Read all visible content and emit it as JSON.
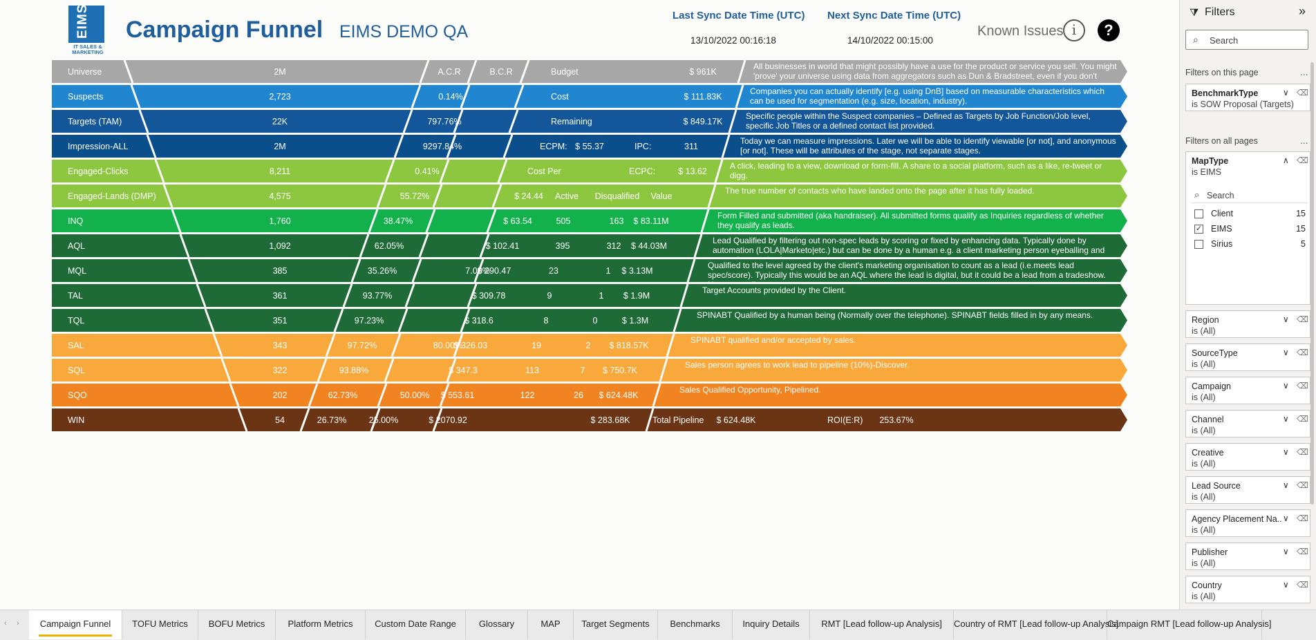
{
  "header": {
    "logo_text": "EIMS",
    "logo_sub": "IT SALES & MARKETING",
    "title": "Campaign Funnel",
    "subtitle": "EIMS DEMO QA",
    "last_sync_label": "Last Sync Date Time (UTC)",
    "last_sync_value": "13/10/2022 00:16:18",
    "next_sync_label": "Next Sync Date Time (UTC)",
    "next_sync_value": "14/10/2022 00:15:00",
    "known_issues": "Known Issues",
    "info_glyph": "i",
    "help_glyph": "?"
  },
  "funnel": {
    "rows": [
      {
        "name": "Universe",
        "color": "#a7a7a7",
        "cells": [
          {
            "c": "count",
            "t": "2M"
          },
          {
            "c": "h1",
            "t": "A.C.R"
          },
          {
            "c": "h2",
            "t": "B.C.R"
          },
          {
            "c": "h3",
            "t": "Budget"
          },
          {
            "c": "h4",
            "t": "$ 961K"
          }
        ],
        "desc": "All businesses in world that might possibly have a use for the product or service you sell. You might 'prove' your universe using data from aggregators such as Dun & Bradstreet, even if you don't"
      },
      {
        "name": "Suspects",
        "color": "#1f86cf",
        "cells": [
          {
            "c": "count",
            "t": "2,723"
          },
          {
            "c": "acr",
            "t": "0.14%"
          },
          {
            "c": "h3",
            "t": "Cost"
          },
          {
            "c": "h4",
            "t": "$ 111.83K"
          }
        ],
        "desc": "Companies you can actually identify [e.g. using DnB] based on measurable characteristics which can be used for segmentation (e.g. size, location, industry)."
      },
      {
        "name": "Targets (TAM)",
        "color": "#13569a",
        "cells": [
          {
            "c": "count",
            "t": "22K"
          },
          {
            "c": "acr",
            "t": "797.76%"
          },
          {
            "c": "h3",
            "t": "Remaining"
          },
          {
            "c": "h4",
            "t": "$ 849.17K"
          }
        ],
        "desc": "Specific people within the Suspect companies – Defined as Targets by Job Function/Job level, specific Job Titles or a defined contact list provided."
      },
      {
        "name": "Impression-ALL",
        "color": "#0a4e8c",
        "cells": [
          {
            "c": "count",
            "t": "2M"
          },
          {
            "c": "acr",
            "t": "9297.84%"
          },
          {
            "c": "ecpm",
            "t": "ECPM:"
          },
          {
            "c": "ecpmv",
            "t": "$ 55.37"
          },
          {
            "c": "ipc",
            "t": "IPC:"
          },
          {
            "c": "ipcv",
            "t": "311"
          }
        ],
        "desc": "Today we can measure impressions. Later we will be able to identify viewable [or not], and anonymous [or not]. These will be attributes of the stage, not separate stages."
      },
      {
        "name": "Engaged-Clicks",
        "color": "#8dc63f",
        "cells": [
          {
            "c": "count",
            "t": "8,211"
          },
          {
            "c": "acr",
            "t": "0.41%"
          },
          {
            "c": "costper",
            "t": "Cost Per"
          },
          {
            "c": "ecpc",
            "t": "ECPC:"
          },
          {
            "c": "ecpcv",
            "t": "$ 13.62"
          }
        ],
        "desc": "A click, leading to a view, download or form-fill. A share to a social platform, such as a like, re-tweet or digg."
      },
      {
        "name": "Engaged-Lands (DMP)",
        "color": "#8dc63f",
        "cells": [
          {
            "c": "count",
            "t": "4,575"
          },
          {
            "c": "acr",
            "t": "55.72%"
          },
          {
            "c": "cost",
            "t": "$ 24.44"
          },
          {
            "c": "active",
            "t": "Active"
          },
          {
            "c": "disq",
            "t": "Disqualified"
          },
          {
            "c": "value",
            "t": "Value"
          }
        ],
        "desc": "The true number of contacts who have landed onto the page after it has fully loaded."
      },
      {
        "name": "INQ",
        "color": "#12b14b",
        "cells": [
          {
            "c": "count",
            "t": "1,760"
          },
          {
            "c": "acr",
            "t": "38.47%"
          },
          {
            "c": "cost",
            "t": "$ 63.54"
          },
          {
            "c": "active",
            "t": "505"
          },
          {
            "c": "disq",
            "t": "163"
          },
          {
            "c": "value",
            "t": "$ 83.11M"
          }
        ],
        "desc": "Form Filled and submitted (aka handraiser). All submitted forms qualify as Inquiries regardless of whether they qualify as leads."
      },
      {
        "name": "AQL",
        "color": "#1e6b37",
        "cells": [
          {
            "c": "count",
            "t": "1,092"
          },
          {
            "c": "acr",
            "t": "62.05%"
          },
          {
            "c": "cost",
            "t": "$ 102.41"
          },
          {
            "c": "active",
            "t": "395"
          },
          {
            "c": "disq",
            "t": "312"
          },
          {
            "c": "value",
            "t": "$ 44.03M"
          }
        ],
        "desc": "Lead Qualified by filtering out non-spec leads by scoring or fixed by enhancing data. Typically done by automation (LOLA|Marketo|etc.) but can be done by a human e.g. a client marketing person eyeballing and accepting or rejecting"
      },
      {
        "name": "MQL",
        "color": "#1e6b37",
        "cells": [
          {
            "c": "count",
            "t": "385"
          },
          {
            "c": "acr",
            "t": "35.26%"
          },
          {
            "c": "bcr",
            "t": "7.00%"
          },
          {
            "c": "cost",
            "t": "$ 290.47"
          },
          {
            "c": "active",
            "t": "23"
          },
          {
            "c": "disq",
            "t": "1"
          },
          {
            "c": "value",
            "t": "$ 3.13M"
          }
        ],
        "desc": "Qualified to the level agreed by the client's marketing organisation to count as a lead (i.e.meets lead spec/score). Typically this would be an AQL where the lead is digital, but it could be a lead from a tradeshow. Note most clients"
      },
      {
        "name": "TAL",
        "color": "#1e6b37",
        "cells": [
          {
            "c": "count",
            "t": "361"
          },
          {
            "c": "acr",
            "t": "93.77%"
          },
          {
            "c": "cost",
            "t": "$ 309.78"
          },
          {
            "c": "active",
            "t": "9"
          },
          {
            "c": "disq",
            "t": "1"
          },
          {
            "c": "value",
            "t": "$ 1.9M"
          }
        ],
        "desc": "Target Accounts provided by the Client."
      },
      {
        "name": "TQL",
        "color": "#1e6b37",
        "cells": [
          {
            "c": "count",
            "t": "351"
          },
          {
            "c": "acr",
            "t": "97.23%"
          },
          {
            "c": "cost",
            "t": "$ 318.6"
          },
          {
            "c": "active",
            "t": "8"
          },
          {
            "c": "disq",
            "t": "0"
          },
          {
            "c": "value",
            "t": "$ 1.3M"
          }
        ],
        "desc": "SPINABT Qualified by a human being (Normally over the telephone). SPINABT fields filled in by any means."
      },
      {
        "name": "SAL",
        "color": "#f9a83b",
        "cells": [
          {
            "c": "count",
            "t": "343"
          },
          {
            "c": "acr",
            "t": "97.72%"
          },
          {
            "c": "bcr",
            "t": "80.00%"
          },
          {
            "c": "cost",
            "t": "$ 326.03"
          },
          {
            "c": "active",
            "t": "19"
          },
          {
            "c": "disq",
            "t": "2"
          },
          {
            "c": "value",
            "t": "$ 818.57K"
          }
        ],
        "desc": "SPINABT qualified and/or accepted by sales."
      },
      {
        "name": "SQL",
        "color": "#f9a83b",
        "cells": [
          {
            "c": "count",
            "t": "322"
          },
          {
            "c": "acr",
            "t": "93.88%"
          },
          {
            "c": "cost",
            "t": "$ 347.3"
          },
          {
            "c": "active",
            "t": "113"
          },
          {
            "c": "disq",
            "t": "7"
          },
          {
            "c": "value",
            "t": "$ 750.7K"
          }
        ],
        "desc": "Sales person agrees to work lead to pipeline (10%)-Discover."
      },
      {
        "name": "SQO",
        "color": "#f28321",
        "cells": [
          {
            "c": "count",
            "t": "202"
          },
          {
            "c": "acr",
            "t": "62.73%"
          },
          {
            "c": "bcr",
            "t": "50.00%"
          },
          {
            "c": "cost",
            "t": "$ 553.61"
          },
          {
            "c": "active",
            "t": "122"
          },
          {
            "c": "disq",
            "t": "26"
          },
          {
            "c": "value",
            "t": "$ 624.48K"
          }
        ],
        "desc": "Sales Qualified Opportunity, Pipelined."
      },
      {
        "name": "WIN",
        "color": "#6b3414",
        "cells": [
          {
            "c": "count",
            "t": "54"
          },
          {
            "c": "acr",
            "t": "26.73%"
          },
          {
            "c": "bcr",
            "t": "25.00%"
          },
          {
            "c": "cost",
            "t": "$ 2070.92"
          },
          {
            "c": "value",
            "t": "$ 283.68K"
          },
          {
            "c": "tp",
            "t": "Total Pipeline"
          },
          {
            "c": "tpv",
            "t": "$ 624.48K"
          },
          {
            "c": "roi",
            "t": "ROI(E:R)"
          },
          {
            "c": "roiv",
            "t": "253.67%"
          }
        ],
        "desc": ""
      }
    ]
  },
  "filters": {
    "title": "Filters",
    "search_placeholder": "Search",
    "on_this_page_label": "Filters on this page",
    "on_all_pages_label": "Filters on all pages",
    "more_glyph": "...",
    "page_filters": [
      {
        "name": "BenchmarkType",
        "value": "is SOW Proposal (Targets)"
      }
    ],
    "maptype": {
      "name": "MapType",
      "value": "is EIMS",
      "search_placeholder": "Search",
      "options": [
        {
          "label": "Client",
          "count": "15",
          "checked": false
        },
        {
          "label": "EIMS",
          "count": "15",
          "checked": true
        },
        {
          "label": "Sirius",
          "count": "5",
          "checked": false
        }
      ]
    },
    "all_filters": [
      {
        "name": "Region",
        "value": "is (All)"
      },
      {
        "name": "SourceType",
        "value": "is (All)"
      },
      {
        "name": "Campaign",
        "value": "is (All)"
      },
      {
        "name": "Channel",
        "value": "is (All)"
      },
      {
        "name": "Creative",
        "value": "is (All)"
      },
      {
        "name": "Lead Source",
        "value": "is (All)"
      },
      {
        "name": "Agency Placement Na...",
        "value": "is (All)"
      },
      {
        "name": "Publisher",
        "value": "is (All)"
      },
      {
        "name": "Country",
        "value": "is (All)"
      }
    ]
  },
  "tabs": [
    {
      "label": "Campaign Funnel",
      "active": true
    },
    {
      "label": "TOFU Metrics"
    },
    {
      "label": "BOFU Metrics"
    },
    {
      "label": "Platform Metrics"
    },
    {
      "label": "Custom Date Range"
    },
    {
      "label": "Glossary"
    },
    {
      "label": "MAP"
    },
    {
      "label": "Target Segments"
    },
    {
      "label": "Benchmarks"
    },
    {
      "label": "Inquiry Details"
    },
    {
      "label": "RMT [Lead follow-up Analysis]"
    },
    {
      "label": "Country of RMT [Lead follow-up Analysis]"
    },
    {
      "label": "Campaign RMT [Lead follow-up Analysis]"
    }
  ]
}
